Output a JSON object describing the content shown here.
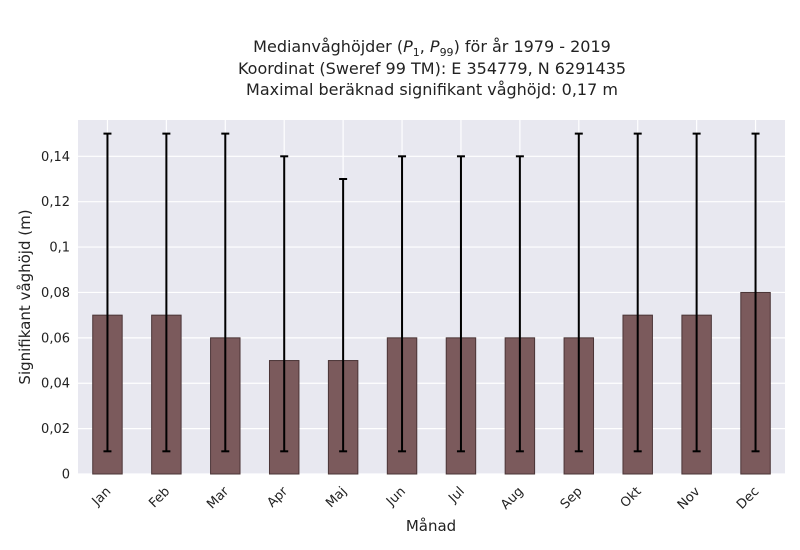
{
  "chart_data": {
    "type": "bar",
    "title": {
      "line1_prefix": "Medianvåghöjder (",
      "p_low_base": "P",
      "p_low_sub": "1",
      "sep": ", ",
      "p_high_base": "P",
      "p_high_sub": "99",
      "line1_suffix": ") för år 1979 - 2019",
      "line2": "Koordinat (Sweref 99 TM): E 354779, N 6291435",
      "line3": "Maximal beräknad signifikant våghöjd: 0,17 m"
    },
    "xlabel": "Månad",
    "ylabel": "Signifikant våghöjd (m)",
    "categories": [
      "Jan",
      "Feb",
      "Mar",
      "Apr",
      "Maj",
      "Jun",
      "Jul",
      "Aug",
      "Sep",
      "Okt",
      "Nov",
      "Dec"
    ],
    "values": [
      0.07,
      0.07,
      0.06,
      0.05,
      0.05,
      0.06,
      0.06,
      0.06,
      0.06,
      0.07,
      0.07,
      0.08
    ],
    "error_low": [
      0.01,
      0.01,
      0.01,
      0.01,
      0.01,
      0.01,
      0.01,
      0.01,
      0.01,
      0.01,
      0.01,
      0.01
    ],
    "error_high": [
      0.15,
      0.15,
      0.15,
      0.14,
      0.13,
      0.14,
      0.14,
      0.14,
      0.15,
      0.15,
      0.15,
      0.15
    ],
    "ylim": [
      0,
      0.156
    ],
    "yticks": [
      0,
      0.02,
      0.04,
      0.06,
      0.08,
      0.1,
      0.12,
      0.14
    ],
    "ytick_labels": [
      "0",
      "0,02",
      "0,04",
      "0,06",
      "0,08",
      "0,1",
      "0,12",
      "0,14"
    ],
    "grid": true,
    "colors": {
      "bar": "#7b5a5c",
      "bar_edge": "#4a3436",
      "error": "#000000",
      "background": "#e8e8f0",
      "grid": "#ffffff"
    }
  }
}
